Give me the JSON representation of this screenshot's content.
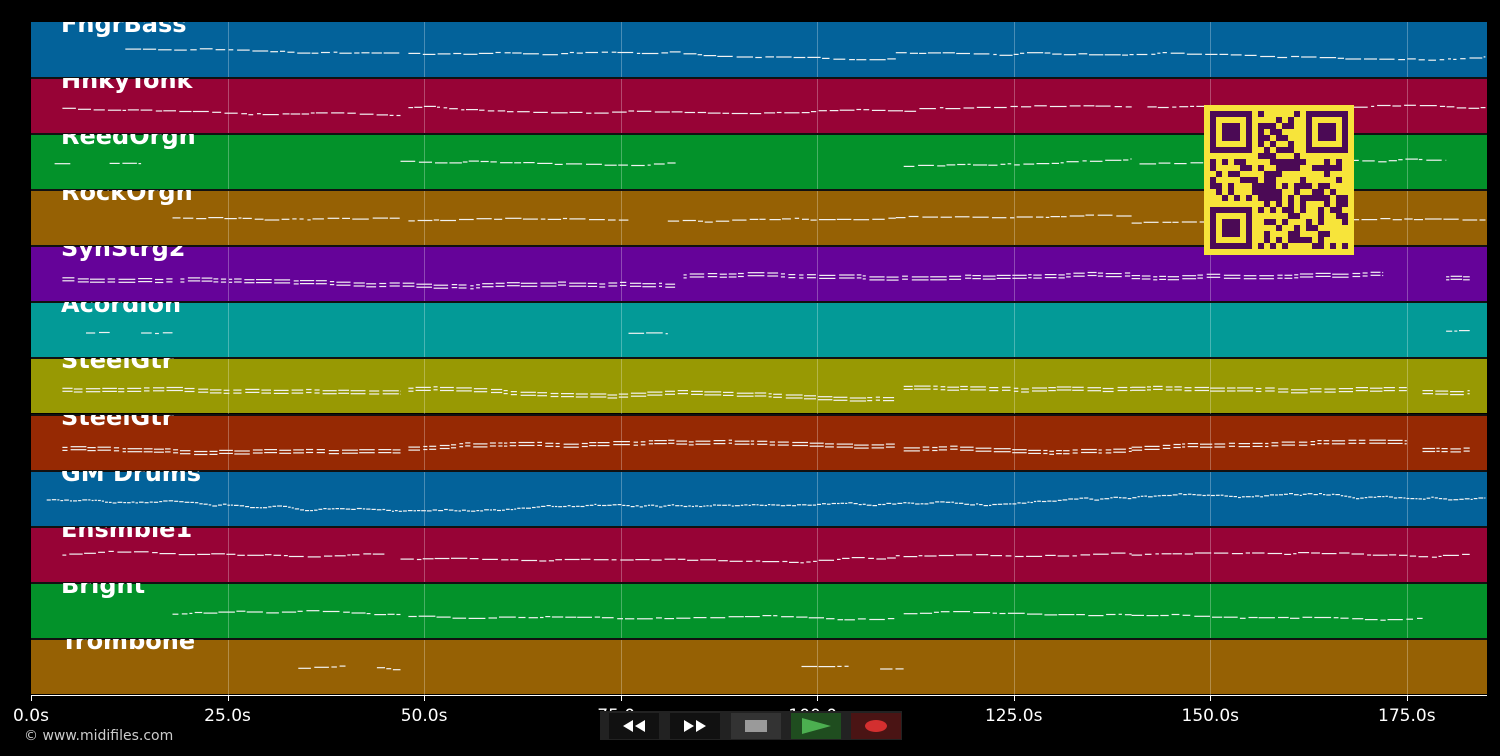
{
  "tracks": [
    {
      "name": "FngrBass",
      "color": "#03629a"
    },
    {
      "name": "HnkyTonk",
      "color": "#970336"
    },
    {
      "name": "ReedOrgn",
      "color": "#03922a"
    },
    {
      "name": "RockOrgn",
      "color": "#966104"
    },
    {
      "name": "SynStrg2",
      "color": "#650399"
    },
    {
      "name": "Acordion",
      "color": "#039a97"
    },
    {
      "name": "SteelGtr",
      "color": "#989903"
    },
    {
      "name": "SteelGtr",
      "color": "#962903"
    },
    {
      "name": "GM Drums",
      "color": "#03629a"
    },
    {
      "name": "Ensmble1",
      "color": "#970336"
    },
    {
      "name": "Bright",
      "color": "#03922a"
    },
    {
      "name": "Trombone",
      "color": "#966104"
    }
  ],
  "timeline": {
    "max_seconds": 185.2,
    "ticks": [
      "0.0s",
      "25.0s",
      "50.0s",
      "75.0s",
      "100.0s",
      "125.0s",
      "150.0s",
      "175.0s"
    ],
    "tick_seconds": [
      0,
      25,
      50,
      75,
      100,
      125,
      150,
      175
    ]
  },
  "footer": {
    "copyright": "© www.midifiles.com"
  },
  "transport": {
    "buttons": [
      {
        "name": "rewind-button",
        "icon": "rewind-icon",
        "color": "#ffffff"
      },
      {
        "name": "fast-forward-button",
        "icon": "fast-forward-icon",
        "color": "#ffffff"
      },
      {
        "name": "stop-button",
        "icon": "stop-icon",
        "color": "#9a9a9a"
      },
      {
        "name": "play-button",
        "icon": "play-icon",
        "color": "#4caf50"
      },
      {
        "name": "record-button",
        "icon": "record-icon",
        "color": "#d32f2f"
      }
    ]
  },
  "qr_code": {
    "color_fg": "#4b0a55",
    "color_bg": "#f7e43a"
  }
}
